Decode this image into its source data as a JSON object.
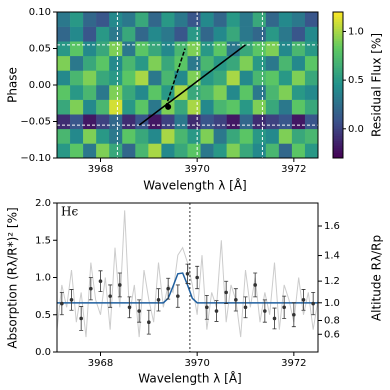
{
  "chart_data": [
    {
      "type": "heatmap",
      "xlabel": "Wavelength λ [Å]",
      "ylabel": "Phase",
      "colorbar_label": "Residual Flux [%]",
      "colormap": "viridis",
      "xlim": [
        3967.1,
        3972.5
      ],
      "xticks": [
        3968,
        3970,
        3972
      ],
      "ylim": [
        -0.1,
        0.1
      ],
      "yticks": [
        {
          "value": -0.1,
          "label": "−0.10"
        },
        {
          "value": -0.05,
          "label": "−0.05"
        },
        {
          "value": 0,
          "label": "0.00"
        },
        {
          "value": 0.05,
          "label": "0.05"
        },
        {
          "value": 0.1,
          "label": "0.10"
        }
      ],
      "clim": [
        -0.3,
        1.2
      ],
      "cticks": [
        {
          "value": 0,
          "label": "0.0"
        },
        0.5,
        {
          "value": 1,
          "label": "1.0"
        }
      ],
      "z": [
        [
          0.5,
          0.8,
          0.3,
          0.9,
          0.6,
          0.2,
          0.7,
          1.0,
          0.4,
          0.6,
          0.8,
          0.3,
          0.5,
          0.9,
          0.6,
          0.4,
          0.7,
          0.2,
          0.8,
          0.5
        ],
        [
          0.7,
          0.4,
          0.9,
          0.5,
          0.3,
          0.8,
          0.6,
          0.4,
          1.0,
          0.7,
          0.5,
          0.9,
          0.3,
          0.6,
          0.8,
          0.5,
          0.4,
          0.9,
          0.6,
          0.7
        ],
        [
          -0.1,
          0.1,
          -0.2,
          0.0,
          0.2,
          -0.1,
          0.1,
          -0.2,
          0.0,
          0.3,
          -0.1,
          0.1,
          0.0,
          -0.2,
          0.2,
          -0.1,
          0.0,
          0.1,
          -0.2,
          0.1
        ],
        [
          0.6,
          0.9,
          0.4,
          0.7,
          1.1,
          0.5,
          0.8,
          0.3,
          0.9,
          0.6,
          1.0,
          0.4,
          0.7,
          0.8,
          0.5,
          0.9,
          0.6,
          0.3,
          0.8,
          0.6
        ],
        [
          0.8,
          0.5,
          0.7,
          0.3,
          0.9,
          0.6,
          0.4,
          0.8,
          0.5,
          1.0,
          0.6,
          0.7,
          0.9,
          0.4,
          0.8,
          0.3,
          0.7,
          0.9,
          0.5,
          0.4
        ],
        [
          0.4,
          0.7,
          0.9,
          0.6,
          0.5,
          0.8,
          1.0,
          0.3,
          0.7,
          0.4,
          0.9,
          0.5,
          0.6,
          1.0,
          0.4,
          0.7,
          0.8,
          0.5,
          0.9,
          0.6
        ],
        [
          0.9,
          0.3,
          0.6,
          0.8,
          0.4,
          0.7,
          0.5,
          0.9,
          0.6,
          0.8,
          0.3,
          0.7,
          0.5,
          0.6,
          0.9,
          0.5,
          0.3,
          0.7,
          0.4,
          0.8
        ],
        [
          0.5,
          0.8,
          0.4,
          0.6,
          0.9,
          0.3,
          0.8,
          0.6,
          0.4,
          0.7,
          0.9,
          0.5,
          0.8,
          0.3,
          0.6,
          0.8,
          0.9,
          0.4,
          0.7,
          0.5
        ],
        [
          0.2,
          0.4,
          0.1,
          0.5,
          0.3,
          0.6,
          0.2,
          0.4,
          0.3,
          0.1,
          0.5,
          0.2,
          0.4,
          0.6,
          0.3,
          0.2,
          0.5,
          0.3,
          0.1,
          0.4
        ],
        [
          0.3,
          0.5,
          0.2,
          0.1,
          0.4,
          0.3,
          0.6,
          0.2,
          0.5,
          0.3,
          0.1,
          0.4,
          0.2,
          0.5,
          0.3,
          0.6,
          0.2,
          0.4,
          0.3,
          0.1
        ]
      ],
      "guide_vlines": [
        3968.35,
        3970.0,
        3971.35
      ],
      "guide_hlines": [
        -0.055,
        0.055
      ],
      "guide_color": "#ffffff",
      "lines": [
        {
          "x": [
            3968.8,
            3971.0
          ],
          "y": [
            -0.055,
            0.055
          ],
          "style": "solid",
          "color": "#000000"
        },
        {
          "x": [
            3969.35,
            3969.75
          ],
          "y": [
            -0.03,
            0.05
          ],
          "style": "dashed",
          "color": "#000000"
        }
      ],
      "points": {
        "x": [
          3969.4
        ],
        "y": [
          -0.03
        ],
        "color": "#000000"
      }
    },
    {
      "type": "spectrum",
      "xlabel": "Wavelength λ [Å]",
      "ylabel": "Absorption (Rλ/R*)² [%]",
      "y2label": "Altitude Rλ/Rp",
      "annotation": "Hϵ",
      "xlim": [
        3967.1,
        3972.5
      ],
      "xticks": [
        3968,
        3970,
        3972
      ],
      "ylim": [
        0,
        2
      ],
      "yticks": [
        {
          "value": 0,
          "label": "0.0"
        },
        0.5,
        {
          "value": 1,
          "label": "1.0"
        },
        1.5,
        {
          "value": 2,
          "label": "2.0"
        }
      ],
      "y2scale": "square",
      "y2lim": [
        0,
        1.74
      ],
      "y2ticks": [
        0.6,
        0.8,
        {
          "value": 1,
          "label": "1.0"
        },
        1.2,
        1.4,
        1.6
      ],
      "vlines": [
        3969.85
      ],
      "spectrum": {
        "color": "#cccccc",
        "x": [
          3967.1,
          3967.2,
          3967.3,
          3967.4,
          3967.5,
          3967.6,
          3967.7,
          3967.8,
          3967.9,
          3968.0,
          3968.1,
          3968.2,
          3968.3,
          3968.4,
          3968.5,
          3968.6,
          3968.7,
          3968.8,
          3968.9,
          3969.0,
          3969.1,
          3969.2,
          3969.3,
          3969.4,
          3969.5,
          3969.6,
          3969.7,
          3969.8,
          3969.9,
          3970.0,
          3970.1,
          3970.2,
          3970.3,
          3970.4,
          3970.5,
          3970.6,
          3970.7,
          3970.8,
          3970.9,
          3971.0,
          3971.1,
          3971.2,
          3971.3,
          3971.4,
          3971.5,
          3971.6,
          3971.7,
          3971.8,
          3971.9,
          3972.0,
          3972.1,
          3972.2,
          3972.3,
          3972.4,
          3972.5
        ],
        "values": [
          0.3,
          0.9,
          0.6,
          1.1,
          0.4,
          0.8,
          0.2,
          1.2,
          0.7,
          0.5,
          1.0,
          0.3,
          1.4,
          0.6,
          1.9,
          0.5,
          0.9,
          0.2,
          1.1,
          0.7,
          0.4,
          1.2,
          0.6,
          0.9,
          0.8,
          1.3,
          1.4,
          1.2,
          0.9,
          0.5,
          1.3,
          0.3,
          0.8,
          0.6,
          1.5,
          0.4,
          0.9,
          0.7,
          0.2,
          1.1,
          0.6,
          1.0,
          0.4,
          0.8,
          0.5,
          1.2,
          0.3,
          0.9,
          0.7,
          0.4,
          1.0,
          0.5,
          0.8,
          0.3,
          0.7
        ]
      },
      "model": {
        "color": "#1f5f9f",
        "values": [
          0.66,
          0.66,
          0.66,
          0.66,
          0.66,
          0.66,
          0.66,
          0.66,
          0.66,
          0.66,
          0.66,
          0.66,
          0.66,
          0.66,
          0.66,
          0.66,
          0.66,
          0.66,
          0.66,
          0.66,
          0.66,
          0.66,
          0.66,
          0.72,
          0.88,
          1.05,
          1.06,
          0.9,
          0.72,
          0.66,
          0.66,
          0.66,
          0.66,
          0.66,
          0.66,
          0.66,
          0.66,
          0.66,
          0.66,
          0.66,
          0.66,
          0.66,
          0.66,
          0.66,
          0.66,
          0.66,
          0.66,
          0.66,
          0.66,
          0.66,
          0.66,
          0.66,
          0.66,
          0.66,
          0.66
        ]
      },
      "binned": {
        "color": "#333333",
        "x": [
          3967.2,
          3967.4,
          3967.6,
          3967.8,
          3968.0,
          3968.2,
          3968.4,
          3968.6,
          3968.8,
          3969.0,
          3969.2,
          3969.4,
          3969.6,
          3969.8,
          3970.0,
          3970.2,
          3970.4,
          3970.6,
          3970.8,
          3971.0,
          3971.2,
          3971.4,
          3971.6,
          3971.8,
          3972.0,
          3972.2,
          3972.4
        ],
        "values": [
          0.65,
          0.7,
          0.45,
          0.85,
          0.95,
          0.75,
          0.9,
          0.6,
          0.55,
          0.4,
          0.7,
          0.85,
          0.75,
          1.05,
          1.0,
          0.6,
          0.55,
          0.8,
          0.7,
          0.6,
          0.9,
          0.55,
          0.45,
          0.6,
          0.5,
          0.7,
          0.65
        ],
        "errors": [
          0.15,
          0.14,
          0.16,
          0.15,
          0.14,
          0.15,
          0.16,
          0.14,
          0.15,
          0.16,
          0.15,
          0.14,
          0.15,
          0.13,
          0.15,
          0.16,
          0.14,
          0.15,
          0.15,
          0.14,
          0.16,
          0.15,
          0.14,
          0.15,
          0.16,
          0.14,
          0.15
        ]
      }
    }
  ]
}
